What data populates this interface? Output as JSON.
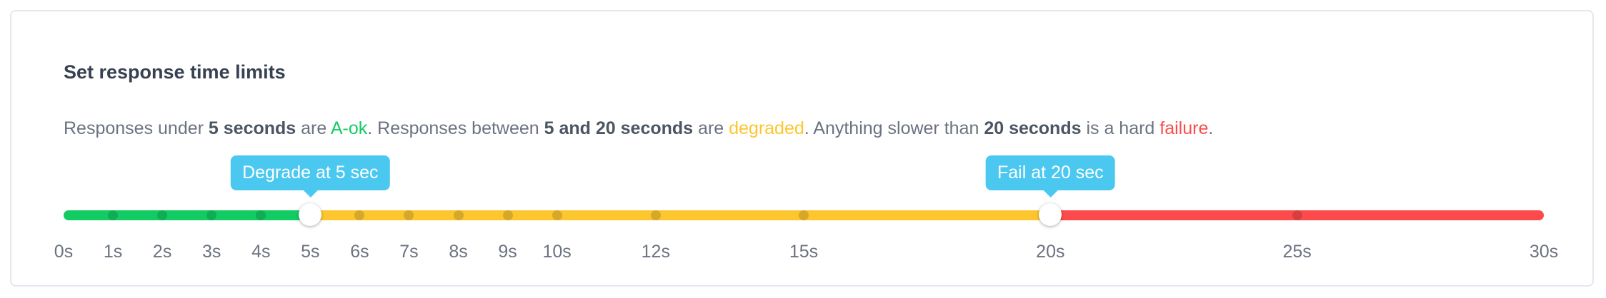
{
  "title": "Set response time limits",
  "description": {
    "p1": "Responses under ",
    "b1": "5 seconds",
    "p2": " are ",
    "ok": "A-ok",
    "p3": ". Responses between ",
    "b2": "5 and 20 seconds",
    "p4": " are ",
    "degraded": "degraded",
    "p5": ". Anything slower than ",
    "b3": "20 seconds",
    "p6": " is a hard ",
    "failure": "failure",
    "p7": "."
  },
  "slider": {
    "min": 0,
    "max": 30,
    "degrade_value": 5,
    "fail_value": 20,
    "degrade_label": "Degrade at 5 sec",
    "fail_label": "Fail at 20 sec",
    "ticks": [
      0,
      1,
      2,
      3,
      4,
      5,
      6,
      7,
      8,
      9,
      10,
      12,
      15,
      20,
      25,
      30
    ],
    "tick_labels": [
      "0s",
      "1s",
      "2s",
      "3s",
      "4s",
      "5s",
      "6s",
      "7s",
      "8s",
      "9s",
      "10s",
      "12s",
      "15s",
      "20s",
      "25s",
      "30s"
    ]
  },
  "colors": {
    "ok": "#12cc63",
    "degraded": "#fdc62e",
    "failure": "#fd4b4b",
    "tooltip": "#4ac8f0"
  }
}
